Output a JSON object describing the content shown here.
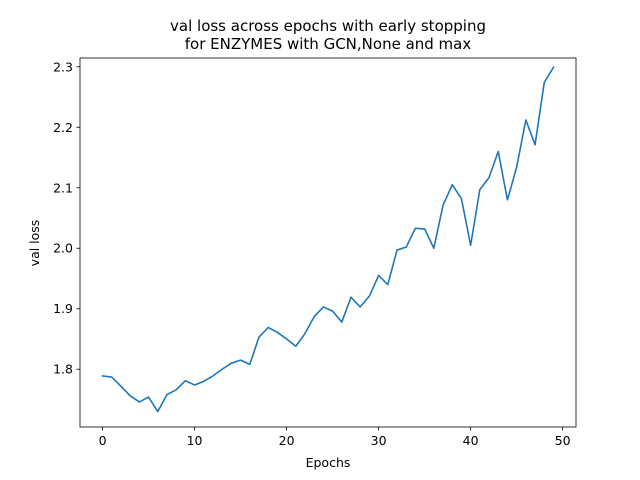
{
  "chart_data": {
    "type": "line",
    "title": "val loss across epochs with early stopping",
    "subtitle": "for ENZYMES with GCN,None  and max",
    "xlabel": "Epochs",
    "ylabel": "val loss",
    "xlim": [
      -2.45,
      51.45
    ],
    "ylim": [
      1.7045,
      2.3145
    ],
    "xticks": [
      0,
      10,
      20,
      30,
      40,
      50
    ],
    "yticks": [
      1.8,
      1.9,
      2.0,
      2.1,
      2.2,
      2.3
    ],
    "xtick_labels": [
      "0",
      "10",
      "20",
      "30",
      "40",
      "50"
    ],
    "ytick_labels": [
      "1.8",
      "1.9",
      "2.0",
      "2.1",
      "2.2",
      "2.3"
    ],
    "grid": false,
    "series": [
      {
        "color": "#1f77b4",
        "x": [
          0,
          1,
          2,
          3,
          4,
          5,
          6,
          7,
          8,
          9,
          10,
          11,
          12,
          13,
          14,
          15,
          16,
          17,
          18,
          19,
          20,
          21,
          22,
          23,
          24,
          25,
          26,
          27,
          28,
          29,
          30,
          31,
          32,
          33,
          34,
          35,
          36,
          37,
          38,
          39,
          40,
          41,
          42,
          43,
          44,
          45,
          46,
          47,
          48,
          49
        ],
        "values": [
          1.789,
          1.787,
          1.772,
          1.756,
          1.746,
          1.754,
          1.73,
          1.758,
          1.766,
          1.781,
          1.774,
          1.78,
          1.789,
          1.8,
          1.81,
          1.815,
          1.808,
          1.853,
          1.869,
          1.861,
          1.85,
          1.838,
          1.859,
          1.887,
          1.903,
          1.896,
          1.878,
          1.919,
          1.903,
          1.921,
          1.955,
          1.94,
          1.997,
          2.002,
          2.033,
          2.032,
          2.0,
          2.071,
          2.105,
          2.082,
          2.005,
          2.097,
          2.117,
          2.16,
          2.08,
          2.134,
          2.212,
          2.171,
          2.274,
          2.299
        ]
      }
    ]
  }
}
